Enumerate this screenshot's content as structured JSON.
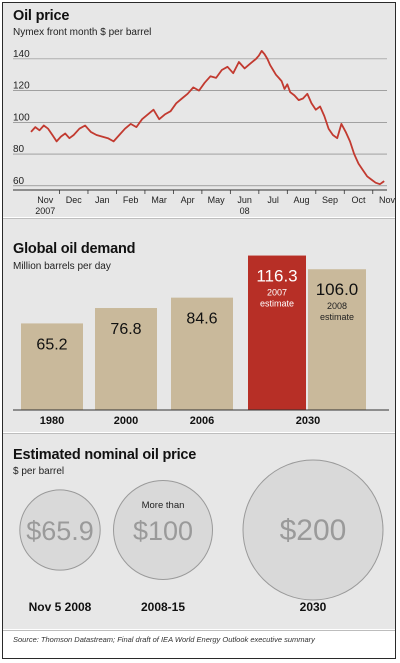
{
  "colors": {
    "panel": "#e7e7e7",
    "line": "#c23a30",
    "bar": "#c9b99b",
    "highlight": "#b72f26",
    "circle_fill": "#d9d9d9",
    "circle_text": "#9a9a9a",
    "grid": "#777777"
  },
  "oil_price": {
    "title": "Oil price",
    "subtitle": "Nymex front month $ per barrel"
  },
  "demand": {
    "title": "Global oil demand",
    "subtitle": "Million barrels per day"
  },
  "nominal": {
    "title": "Estimated nominal oil price",
    "subtitle": "$ per barrel",
    "more_than_label": "More than"
  },
  "source": "Source: Thomson Datastream; Final draft of IEA World Energy Outlook executive summary",
  "chart_data": [
    {
      "type": "line",
      "title": "Oil price",
      "subtitle": "Nymex front month $ per barrel",
      "y_ticks": [
        60,
        80,
        100,
        120,
        140
      ],
      "ylim": [
        58,
        150
      ],
      "xlim": [
        0,
        12.5
      ],
      "x_ticks": [
        {
          "pos": 0.5,
          "label": "Nov",
          "year": "2007"
        },
        {
          "pos": 1.5,
          "label": "Dec",
          "year": ""
        },
        {
          "pos": 2.5,
          "label": "Jan",
          "year": ""
        },
        {
          "pos": 3.5,
          "label": "Feb",
          "year": ""
        },
        {
          "pos": 4.5,
          "label": "Mar",
          "year": ""
        },
        {
          "pos": 5.5,
          "label": "Apr",
          "year": ""
        },
        {
          "pos": 6.5,
          "label": "May",
          "year": ""
        },
        {
          "pos": 7.5,
          "label": "Jun",
          "year": "08"
        },
        {
          "pos": 8.5,
          "label": "Jul",
          "year": ""
        },
        {
          "pos": 9.5,
          "label": "Aug",
          "year": ""
        },
        {
          "pos": 10.5,
          "label": "Sep",
          "year": ""
        },
        {
          "pos": 11.5,
          "label": "Oct",
          "year": ""
        },
        {
          "pos": 12.5,
          "label": "Nov",
          "year": ""
        }
      ],
      "x_tick_dividers": [
        1,
        2,
        3,
        4,
        5,
        6,
        7,
        8,
        9,
        10,
        11,
        12
      ],
      "series": [
        {
          "x": [
            0,
            0.15,
            0.3,
            0.45,
            0.6,
            0.75,
            0.9,
            1.05,
            1.2,
            1.35,
            1.5,
            1.7,
            1.9,
            2.1,
            2.3,
            2.5,
            2.7,
            2.9,
            3.1,
            3.3,
            3.5,
            3.7,
            3.9,
            4.1,
            4.3,
            4.5,
            4.7,
            4.9,
            5.1,
            5.3,
            5.5,
            5.7,
            5.9,
            6.1,
            6.3,
            6.5,
            6.7,
            6.9,
            7.1,
            7.3,
            7.5,
            7.7,
            7.9,
            8.0,
            8.1,
            8.2,
            8.3,
            8.4,
            8.5,
            8.6,
            8.7,
            8.8,
            8.9,
            9.0,
            9.1,
            9.25,
            9.4,
            9.55,
            9.7,
            9.85,
            10.0,
            10.15,
            10.3,
            10.45,
            10.6,
            10.75,
            10.9,
            11.05,
            11.2,
            11.35,
            11.5,
            11.65,
            11.8,
            11.95,
            12.1,
            12.25,
            12.4
          ],
          "values": [
            94,
            97,
            95,
            98,
            96,
            92,
            88,
            91,
            93,
            90,
            92,
            96,
            98,
            94,
            92,
            91,
            90,
            88,
            92,
            96,
            99,
            97,
            102,
            105,
            108,
            102,
            105,
            107,
            112,
            115,
            118,
            122,
            120,
            125,
            129,
            128,
            133,
            135,
            131,
            138,
            134,
            137,
            140,
            142,
            145,
            143,
            140,
            136,
            133,
            130,
            128,
            126,
            121,
            124,
            119,
            117,
            114,
            115,
            118,
            112,
            108,
            110,
            104,
            96,
            92,
            90,
            99,
            94,
            88,
            80,
            74,
            70,
            66,
            64,
            62,
            61,
            63
          ]
        }
      ]
    },
    {
      "type": "bar",
      "title": "Global oil demand",
      "subtitle": "Million barrels per day",
      "ylim": [
        0,
        125
      ],
      "categories": [
        "1980",
        "2000",
        "2006",
        "2030",
        "2030"
      ],
      "groups": [
        {
          "label": "1980",
          "bars": [
            0
          ]
        },
        {
          "label": "2000",
          "bars": [
            1
          ]
        },
        {
          "label": "2006",
          "bars": [
            2
          ]
        },
        {
          "label": "2030",
          "bars": [
            3,
            4
          ]
        }
      ],
      "values": [
        65.2,
        76.8,
        84.6,
        116.3,
        106.0
      ],
      "value_labels": [
        "65.2",
        "76.8",
        "84.6",
        "116.3",
        "106.0"
      ],
      "bar_notes": [
        "",
        "",
        "",
        "2007 estimate",
        "2008 estimate"
      ],
      "highlight_index": 3
    },
    {
      "type": "bubble",
      "title": "Estimated nominal oil price",
      "subtitle": "$ per barrel",
      "items": [
        {
          "label": "Nov 5 2008",
          "value": 65.9,
          "value_label": "$65.9",
          "prefix": ""
        },
        {
          "label": "2008-15",
          "value": 100,
          "value_label": "$100",
          "prefix": "More than"
        },
        {
          "label": "2030",
          "value": 200,
          "value_label": "$200",
          "prefix": ""
        }
      ]
    }
  ]
}
